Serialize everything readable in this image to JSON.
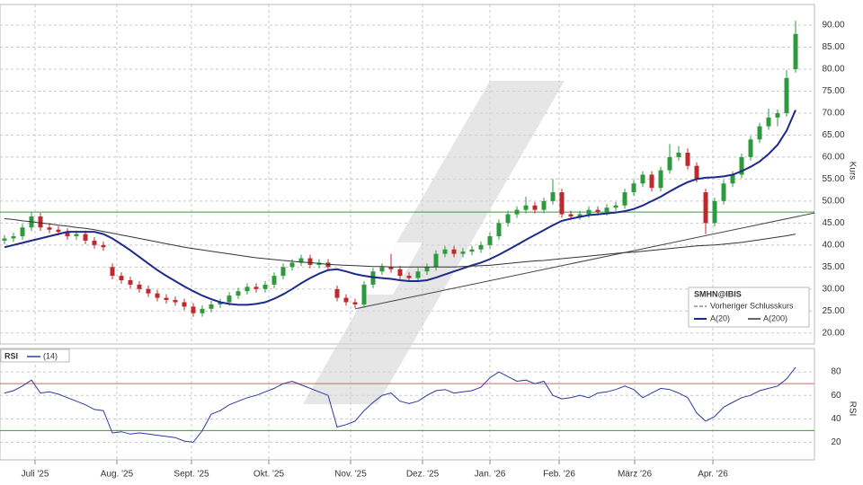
{
  "chart_data": {
    "type": "candlestick",
    "symbol": "SMHN@IBIS",
    "prev_close_label": "Vorheriger Schlusskurs",
    "y_axis_label": "Kurs",
    "up_color": "#2e9a3e",
    "down_color": "#c0282d",
    "xlim": [
      -0.5,
      90.1
    ],
    "xticks": [
      {
        "value": 3.4,
        "label": "Juli '25"
      },
      {
        "value": 12.5,
        "label": "Aug. '25"
      },
      {
        "value": 20.8,
        "label": "Sept. '25"
      },
      {
        "value": 29.4,
        "label": "Okt. '25"
      },
      {
        "value": 38.5,
        "label": "Nov. '25"
      },
      {
        "value": 46.5,
        "label": "Dez. '25"
      },
      {
        "value": 54,
        "label": "Jan. '26"
      },
      {
        "value": 61.7,
        "label": "Feb. '26"
      },
      {
        "value": 70.1,
        "label": "März '26"
      },
      {
        "value": 78.8,
        "label": "Apr. '26"
      }
    ],
    "ylim": [
      17.5,
      94.7
    ],
    "yticks": [
      {
        "value": 20,
        "label": "20.00"
      },
      {
        "value": 25,
        "label": "25.00"
      },
      {
        "value": 30,
        "label": "30.00"
      },
      {
        "value": 35,
        "label": "35.00"
      },
      {
        "value": 40,
        "label": "40.00"
      },
      {
        "value": 45,
        "label": "45.00"
      },
      {
        "value": 50,
        "label": "50.00"
      },
      {
        "value": 55,
        "label": "55.00"
      },
      {
        "value": 60,
        "label": "60.00"
      },
      {
        "value": 65,
        "label": "65.00"
      },
      {
        "value": 70,
        "label": "70.00"
      },
      {
        "value": 75,
        "label": "75.00"
      },
      {
        "value": 80,
        "label": "80.00"
      },
      {
        "value": 85,
        "label": "85.00"
      },
      {
        "value": 90,
        "label": "90.00"
      }
    ],
    "grid": true,
    "ohlc": [
      [
        41,
        42.3,
        40.2,
        41.5
      ],
      [
        41.5,
        42.8,
        40.7,
        42
      ],
      [
        42,
        44.8,
        41.2,
        44
      ],
      [
        44,
        47.6,
        43.2,
        46.5
      ],
      [
        46.5,
        47.3,
        43.2,
        44
      ],
      [
        44,
        44.8,
        42.7,
        43.5
      ],
      [
        43.5,
        44.3,
        42.2,
        43
      ],
      [
        43,
        43.8,
        41.2,
        42
      ],
      [
        42,
        43.3,
        41.2,
        42.5
      ],
      [
        42.5,
        43.3,
        40.2,
        41
      ],
      [
        41,
        41.8,
        39.2,
        40
      ],
      [
        40,
        40.8,
        38.7,
        39.5
      ],
      [
        35,
        35.8,
        32.2,
        33
      ],
      [
        33,
        33.8,
        31.2,
        32
      ],
      [
        32,
        32.8,
        30.2,
        31
      ],
      [
        31,
        31.8,
        29.2,
        30
      ],
      [
        30,
        30.8,
        28.2,
        29
      ],
      [
        29,
        29.8,
        27.2,
        28
      ],
      [
        28,
        28.8,
        26.7,
        27.5
      ],
      [
        27.5,
        28.3,
        26.2,
        27
      ],
      [
        27,
        27.8,
        25.2,
        26
      ],
      [
        26,
        26.8,
        23.7,
        24.5
      ],
      [
        24.5,
        26.3,
        23.7,
        25.5
      ],
      [
        25.5,
        27.3,
        24.7,
        26.5
      ],
      [
        26.5,
        27.8,
        25.7,
        27
      ],
      [
        27,
        29.3,
        26.2,
        28.5
      ],
      [
        28.5,
        30.3,
        27.7,
        29.5
      ],
      [
        29.5,
        31.3,
        28.7,
        30.5
      ],
      [
        30.5,
        31.3,
        29.2,
        30
      ],
      [
        30,
        31.8,
        29.2,
        31
      ],
      [
        31,
        33.8,
        30.2,
        33
      ],
      [
        33,
        35.8,
        32.2,
        35
      ],
      [
        35,
        36.8,
        34.2,
        36
      ],
      [
        36,
        37.8,
        35.2,
        37
      ],
      [
        37,
        37.8,
        34.7,
        35.5
      ],
      [
        35.5,
        36.8,
        34.7,
        36
      ],
      [
        36,
        36.8,
        34.2,
        35
      ],
      [
        30,
        30.8,
        27.2,
        28
      ],
      [
        28,
        28.8,
        26.2,
        27
      ],
      [
        27,
        27.8,
        25.7,
        26.5
      ],
      [
        26.5,
        31.8,
        25.7,
        31
      ],
      [
        31,
        34.8,
        30.2,
        34
      ],
      [
        34,
        35.8,
        33.2,
        35
      ],
      [
        35,
        38,
        33.7,
        34.5
      ],
      [
        34.5,
        35.3,
        32.2,
        33
      ],
      [
        33,
        33.8,
        31.7,
        32.5
      ],
      [
        32.5,
        34.8,
        31.7,
        34
      ],
      [
        34,
        35.8,
        33.2,
        35
      ],
      [
        35,
        38.8,
        34.2,
        38
      ],
      [
        38,
        39.8,
        37.2,
        39
      ],
      [
        39,
        39.8,
        37.2,
        38
      ],
      [
        38,
        39.3,
        37.2,
        38.5
      ],
      [
        38.5,
        39.8,
        37.7,
        39
      ],
      [
        39,
        40.8,
        38.2,
        40
      ],
      [
        40,
        42.8,
        39.2,
        42
      ],
      [
        42,
        45.8,
        41.2,
        45
      ],
      [
        45,
        47.8,
        44.2,
        47
      ],
      [
        47,
        48.8,
        46.2,
        48
      ],
      [
        48,
        51,
        47.2,
        49
      ],
      [
        49,
        49.8,
        47.2,
        48
      ],
      [
        48,
        50.8,
        47.2,
        50
      ],
      [
        50,
        55,
        49.2,
        52
      ],
      [
        52,
        52.8,
        46.2,
        47
      ],
      [
        47,
        47.8,
        45.7,
        46.5
      ],
      [
        46.5,
        47.8,
        45.7,
        47
      ],
      [
        47,
        48.8,
        46.2,
        48
      ],
      [
        48,
        48.8,
        46.7,
        47.5
      ],
      [
        47.5,
        49.3,
        46.7,
        48.5
      ],
      [
        48.5,
        49.8,
        47.7,
        49
      ],
      [
        49,
        52.8,
        48.2,
        52
      ],
      [
        52,
        54.8,
        51.2,
        54
      ],
      [
        54,
        56.8,
        53.2,
        56
      ],
      [
        56,
        56.8,
        52.2,
        53
      ],
      [
        53,
        57.8,
        52.2,
        57
      ],
      [
        57,
        63,
        56.2,
        60
      ],
      [
        60,
        62.5,
        59.2,
        61
      ],
      [
        61,
        62,
        57.2,
        58
      ],
      [
        58,
        58.8,
        54.2,
        55
      ],
      [
        52,
        52.8,
        42.5,
        45
      ],
      [
        45,
        50.8,
        44.2,
        50
      ],
      [
        50,
        54.8,
        49.2,
        54
      ],
      [
        54,
        56.8,
        53.2,
        56
      ],
      [
        56,
        60.8,
        55.2,
        60
      ],
      [
        60,
        64.8,
        59.2,
        64
      ],
      [
        64,
        67.8,
        63.2,
        67
      ],
      [
        67,
        71,
        66.2,
        69
      ],
      [
        69,
        70.8,
        67,
        70
      ],
      [
        70,
        79.8,
        69.2,
        78
      ],
      [
        80,
        91,
        79.2,
        88
      ]
    ],
    "series": [
      {
        "name": "A(20)",
        "color": "#1c2a8c",
        "values": [
          39.5,
          40,
          40.5,
          41,
          41.5,
          42,
          42.5,
          43,
          43,
          43,
          43,
          42.5,
          41.5,
          40.2,
          38.8,
          37.3,
          35.8,
          34.3,
          33,
          31.8,
          30.6,
          29.5,
          28.5,
          27.7,
          27,
          26.6,
          26.4,
          26.4,
          26.6,
          27,
          27.8,
          28.8,
          30,
          31.3,
          32.5,
          33.5,
          34.3,
          34.5,
          34,
          33.4,
          33,
          32.7,
          32.5,
          32.3,
          32,
          31.8,
          31.8,
          32,
          32.6,
          33.3,
          34,
          34.7,
          35.4,
          36,
          36.8,
          37.8,
          38.9,
          40,
          41.2,
          42.3,
          43.4,
          44.5,
          45.5,
          46,
          46.4,
          46.8,
          47,
          47.2,
          47.4,
          47.7,
          48.2,
          49,
          50,
          51,
          52.2,
          53.3,
          54.3,
          55,
          55.3,
          55.4,
          55.6,
          56,
          56.8,
          57.8,
          59,
          60.7,
          62.8,
          66,
          70.7
        ]
      },
      {
        "name": "A(200)",
        "color": "#333333",
        "values": [
          46,
          45.8,
          45.5,
          45.3,
          45,
          44.8,
          44.5,
          44.3,
          44,
          43.8,
          43.5,
          43.1,
          42.7,
          42.3,
          41.9,
          41.5,
          41.1,
          40.7,
          40.3,
          39.9,
          39.5,
          39.2,
          38.9,
          38.6,
          38.3,
          38,
          37.7,
          37.4,
          37.1,
          36.9,
          36.7,
          36.5,
          36.3,
          36.1,
          36,
          35.8,
          35.6,
          35.5,
          35.4,
          35.3,
          35.2,
          35.1,
          35.1,
          35,
          35,
          35,
          35,
          35,
          35,
          35,
          35,
          35.1,
          35.2,
          35.3,
          35.4,
          35.6,
          35.8,
          36,
          36.2,
          36.4,
          36.5,
          36.7,
          36.9,
          37.1,
          37.3,
          37.5,
          37.7,
          37.9,
          38.1,
          38.3,
          38.4,
          38.6,
          38.8,
          39,
          39.2,
          39.4,
          39.6,
          39.8,
          39.9,
          40,
          40.2,
          40.4,
          40.6,
          40.9,
          41.2,
          41.5,
          41.8,
          42.1,
          42.5
        ]
      }
    ],
    "hline": {
      "value": 47.5,
      "color": "#3a9a3a"
    },
    "trendline": {
      "x": [
        39,
        90.1
      ],
      "y": [
        25.5,
        47.3
      ],
      "color": "#444444"
    },
    "rsi": {
      "title": "RSI",
      "name": "(14)",
      "axis_label": "RSI",
      "color": "#2b3a9a",
      "ylim": [
        5,
        100
      ],
      "yticks": [
        20,
        40,
        60,
        80
      ],
      "upper": {
        "value": 70,
        "color": "#e06060"
      },
      "lower": {
        "value": 30,
        "color": "#3a9a3a"
      },
      "values": [
        62,
        64,
        68,
        73,
        62,
        63,
        61,
        58,
        55,
        52,
        48,
        47,
        28,
        29,
        27,
        28,
        27,
        26,
        25,
        24,
        21,
        20,
        30,
        44,
        47,
        52,
        55,
        58,
        60,
        63,
        66,
        70,
        72,
        69,
        66,
        63,
        60,
        33,
        35,
        38,
        47,
        54,
        60,
        62,
        55,
        53,
        55,
        60,
        64,
        65,
        62,
        63,
        64,
        67,
        75,
        80,
        76,
        72,
        73,
        70,
        72,
        60,
        57,
        58,
        60,
        58,
        62,
        63,
        65,
        68,
        65,
        58,
        62,
        66,
        65,
        62,
        58,
        45,
        38,
        42,
        50,
        54,
        58,
        60,
        64,
        66,
        68,
        74,
        84
      ]
    }
  }
}
